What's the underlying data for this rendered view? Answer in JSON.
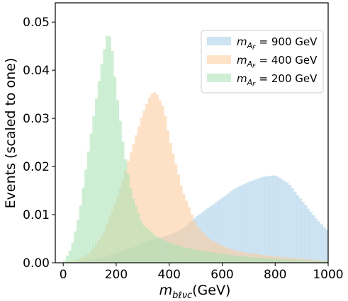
{
  "chart_data": {
    "type": "histogram",
    "xlabel": "m_{bℓνc}(GeV)",
    "xlabel_parts": {
      "base": "m",
      "sub": "bℓνc",
      "unit": "(GeV)"
    },
    "ylabel": "Events (scaled to one)",
    "xlim": [
      -30,
      1000
    ],
    "ylim": [
      0,
      0.054
    ],
    "xticks": [
      "0",
      "200",
      "400",
      "600",
      "800",
      "1000"
    ],
    "xtick_values": [
      0,
      200,
      400,
      600,
      800,
      1000
    ],
    "yticks": [
      "0.00",
      "0.01",
      "0.02",
      "0.03",
      "0.04",
      "0.05"
    ],
    "ytick_values": [
      0,
      0.01,
      0.02,
      0.03,
      0.04,
      0.05
    ],
    "grid": false,
    "legend_position": "upper-right",
    "bin_width": 10,
    "series": [
      {
        "name": "m_{A_F} = 900 GeV",
        "legend": {
          "base": "m",
          "sub": "A",
          "subsub": "F",
          "rest": " = 900 GeV"
        },
        "color": "#a6cee8",
        "x": [
          0,
          50,
          100,
          150,
          200,
          250,
          300,
          350,
          400,
          450,
          500,
          550,
          600,
          650,
          700,
          750,
          800,
          850,
          900,
          950,
          1000
        ],
        "y": [
          0.0,
          0.0002,
          0.0006,
          0.0012,
          0.002,
          0.003,
          0.004,
          0.005,
          0.0058,
          0.007,
          0.0095,
          0.0115,
          0.0135,
          0.0155,
          0.0168,
          0.0178,
          0.0182,
          0.0165,
          0.013,
          0.0095,
          0.0065
        ]
      },
      {
        "name": "m_{A_F} = 400 GeV",
        "legend": {
          "base": "m",
          "sub": "A",
          "subsub": "F",
          "rest": " = 400 GeV"
        },
        "color": "#fdcb9a",
        "x": [
          0,
          50,
          100,
          150,
          200,
          250,
          300,
          330,
          350,
          380,
          400,
          450,
          500,
          550,
          600,
          650,
          700,
          800,
          900,
          1000
        ],
        "y": [
          0.0,
          0.0006,
          0.002,
          0.006,
          0.013,
          0.022,
          0.031,
          0.035,
          0.0355,
          0.032,
          0.026,
          0.015,
          0.008,
          0.005,
          0.0035,
          0.0025,
          0.002,
          0.0013,
          0.0008,
          0.0004
        ]
      },
      {
        "name": "m_{A_F} = 200 GeV",
        "legend": {
          "base": "m",
          "sub": "A",
          "subsub": "F",
          "rest": " = 200 GeV"
        },
        "color": "#a8e2b3",
        "x": [
          0,
          30,
          60,
          100,
          130,
          150,
          170,
          185,
          200,
          230,
          260,
          300,
          350,
          400,
          450,
          500,
          600,
          700,
          800,
          900,
          1000
        ],
        "y": [
          0.0,
          0.003,
          0.01,
          0.025,
          0.036,
          0.043,
          0.0485,
          0.044,
          0.036,
          0.023,
          0.014,
          0.008,
          0.0055,
          0.0042,
          0.0033,
          0.0027,
          0.0018,
          0.0012,
          0.0008,
          0.0005,
          0.0003
        ]
      }
    ]
  }
}
